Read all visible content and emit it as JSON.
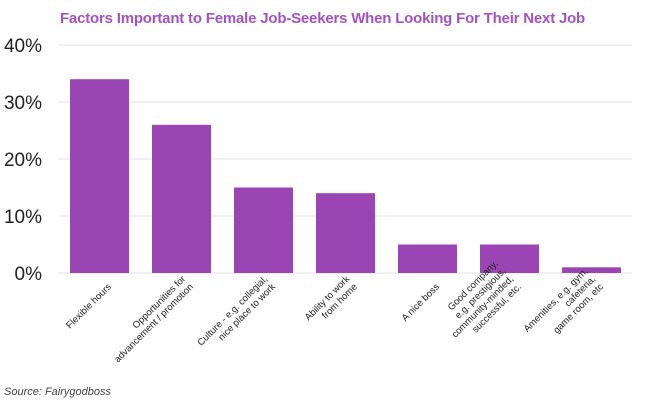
{
  "colors": {
    "bar": "#9b44b3",
    "title": "#a353c0",
    "grid": "#e0e0e0",
    "text": "#222222"
  },
  "chart_data": {
    "type": "bar",
    "title": "Factors Important to Female Job-Seekers When Looking For Their Next Job",
    "xlabel": "",
    "ylabel": "",
    "ylim": [
      0,
      40
    ],
    "yticks": [
      "0%",
      "10%",
      "20%",
      "30%",
      "40%"
    ],
    "grid": true,
    "legend": "none",
    "categories": [
      [
        "Flexible hours"
      ],
      [
        "Opportunities for",
        "advancement / promotion"
      ],
      [
        "Culture - e.g. collegial,",
        "nice place to work"
      ],
      [
        "Ability to work",
        "from home"
      ],
      [
        "A nice boss"
      ],
      [
        "Good company,",
        "e.g. prestigious,",
        "community-minded,",
        "successful, etc."
      ],
      [
        "Amenities, e.g. gym,",
        "cafeteria,",
        "game room, etc"
      ]
    ],
    "values": [
      34,
      26,
      15,
      14,
      5,
      5,
      1
    ]
  },
  "source": "Source: Fairygodboss"
}
